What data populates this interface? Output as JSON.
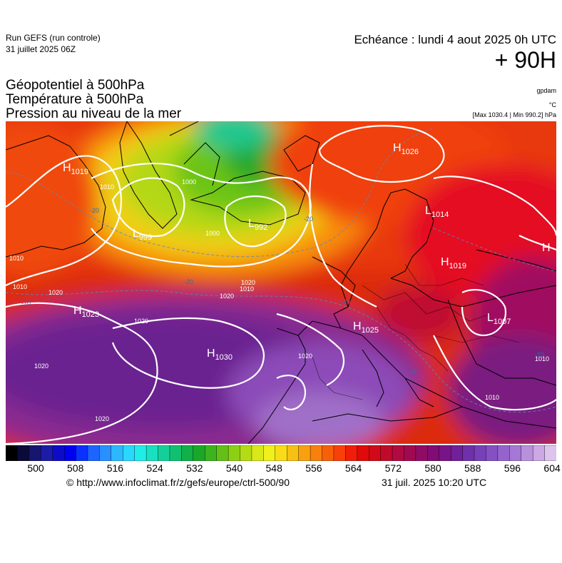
{
  "header": {
    "run_title": "Run GEFS (run controle)",
    "run_date": "31 juillet 2025 06Z",
    "echeance": "Echéance : lundi 4 aout 2025 0h UTC",
    "lead_time": "+ 90H",
    "params": [
      "Géopotentiel à 500hPa",
      "Température à 500hPa",
      "Pression au niveau de la mer"
    ],
    "unit_geopot": "gpdam",
    "unit_temp": "°C",
    "maxmin": "[Max 1030.4 | Min 990.2] hPa"
  },
  "map": {
    "pressure_centers": [
      {
        "type": "H",
        "value": "1019"
      },
      {
        "type": "H",
        "value": "1026"
      },
      {
        "type": "L",
        "value": "1014"
      },
      {
        "type": "L",
        "value": "999"
      },
      {
        "type": "L",
        "value": "992"
      },
      {
        "type": "H",
        "value": "1019"
      },
      {
        "type": "H",
        "value": "1023"
      },
      {
        "type": "H",
        "value": "1030"
      },
      {
        "type": "H",
        "value": "1025"
      },
      {
        "type": "L",
        "value": "1007"
      },
      {
        "type": "H",
        "value": ""
      }
    ],
    "isobar_labels": [
      "1000",
      "1000",
      "1010",
      "1010",
      "1020",
      "1020",
      "1020",
      "1020",
      "1020",
      "1020",
      "1010",
      "1010",
      "1010",
      "1010",
      "1020"
    ],
    "temperature_labels": [
      "-20",
      "-20",
      "-20",
      "-20",
      "-10",
      "-10",
      "-10"
    ]
  },
  "colorbar": {
    "colors": [
      "#000000",
      "#0b0b3a",
      "#161670",
      "#1c1ca6",
      "#0c0cc8",
      "#0000f0",
      "#0a32ff",
      "#1e64ff",
      "#2890ff",
      "#2cb8ff",
      "#28d8ff",
      "#20ece8",
      "#18e0c0",
      "#14d098",
      "#10c070",
      "#12b048",
      "#1aa828",
      "#3cb420",
      "#64c018",
      "#8cd014",
      "#b4dc14",
      "#d8e818",
      "#f0f01c",
      "#f8dc18",
      "#f8c014",
      "#f8a010",
      "#f8800c",
      "#f86008",
      "#f84008",
      "#f01e08",
      "#e00a0a",
      "#d00a18",
      "#c00a2c",
      "#b00a40",
      "#a00a50",
      "#900c64",
      "#800c74",
      "#781486",
      "#702098",
      "#7030aa",
      "#7840b8",
      "#8450c4",
      "#9464cc",
      "#a478d4",
      "#b890dc",
      "#cca8e4",
      "#dcc4ec"
    ],
    "labels": [
      "500",
      "508",
      "516",
      "524",
      "532",
      "540",
      "548",
      "556",
      "564",
      "572",
      "580",
      "588",
      "596",
      "604"
    ]
  },
  "footer": {
    "url": "© http://www.infoclimat.fr/z/gefs/europe/ctrl-500/90",
    "generated": "31 juil. 2025 10:20 UTC"
  }
}
